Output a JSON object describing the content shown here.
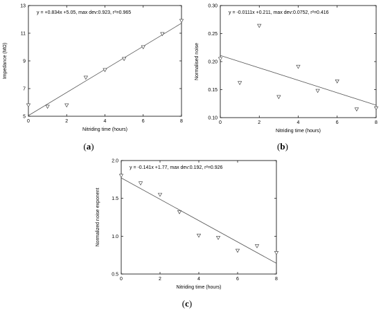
{
  "chart_data": [
    {
      "type": "scatter",
      "panel": "a",
      "xlabel": "Nitriding time (hours)",
      "ylabel": "Impedance (MΩ)",
      "equation": "y = +0.834x   +5.05, max dev:0.923, r²=0.965",
      "xlim": [
        0,
        8
      ],
      "ylim": [
        5,
        13
      ],
      "xticks": [
        0,
        2,
        4,
        6,
        8
      ],
      "yticks": [
        5,
        7,
        9,
        11,
        13
      ],
      "points": [
        [
          0,
          5.8
        ],
        [
          1,
          5.7
        ],
        [
          2,
          5.8
        ],
        [
          3,
          7.8
        ],
        [
          4,
          8.35
        ],
        [
          5,
          9.15
        ],
        [
          6,
          10.0
        ],
        [
          7,
          10.95
        ],
        [
          8,
          11.9
        ]
      ],
      "fit": {
        "slope": 0.834,
        "intercept": 5.05
      }
    },
    {
      "type": "scatter",
      "panel": "b",
      "xlabel": "Nitriding time (hours)",
      "ylabel": "Normalised noise",
      "equation": "y = -0.0111x   +0.211, max dev:0.0752, r²=0.416",
      "xlim": [
        0,
        8
      ],
      "ylim": [
        0.1,
        0.3
      ],
      "xticks": [
        0,
        2,
        4,
        6,
        8
      ],
      "yticks": [
        0.1,
        0.15,
        0.2,
        0.25,
        0.3
      ],
      "yticklabels": [
        "0.10",
        "0.15",
        "0.20",
        "0.25",
        "0.30"
      ],
      "points": [
        [
          0,
          0.205
        ],
        [
          1,
          0.162
        ],
        [
          2,
          0.264
        ],
        [
          3,
          0.137
        ],
        [
          4,
          0.191
        ],
        [
          5,
          0.148
        ],
        [
          6,
          0.165
        ],
        [
          7,
          0.115
        ],
        [
          8,
          0.117
        ]
      ],
      "fit": {
        "slope": -0.0111,
        "intercept": 0.211
      }
    },
    {
      "type": "scatter",
      "panel": "c",
      "xlabel": "Nitriding time (hours)",
      "ylabel": "Normalized noise exponent",
      "equation": "y = -0.141x   +1.77, max dev:0.192, r²=0.926",
      "xlim": [
        0,
        8
      ],
      "ylim": [
        0.5,
        2.0
      ],
      "xticks": [
        0,
        2,
        4,
        6,
        8
      ],
      "yticks": [
        0.5,
        1.0,
        1.5,
        2.0
      ],
      "yticklabels": [
        "0.5",
        "1.0",
        "1.5",
        "2.0"
      ],
      "points": [
        [
          0,
          1.8
        ],
        [
          1,
          1.7
        ],
        [
          2,
          1.55
        ],
        [
          3,
          1.32
        ],
        [
          4,
          1.01
        ],
        [
          5,
          0.98
        ],
        [
          6,
          0.81
        ],
        [
          7,
          0.87
        ],
        [
          8,
          0.78
        ]
      ],
      "fit": {
        "slope": -0.141,
        "intercept": 1.77
      }
    }
  ],
  "panel_labels": {
    "a_open": "(",
    "a_letter": "a",
    "a_close": ")",
    "b_open": "(",
    "b_letter": "b",
    "b_close": ")",
    "c_open": "(",
    "c_letter": "c",
    "c_close": ")"
  }
}
